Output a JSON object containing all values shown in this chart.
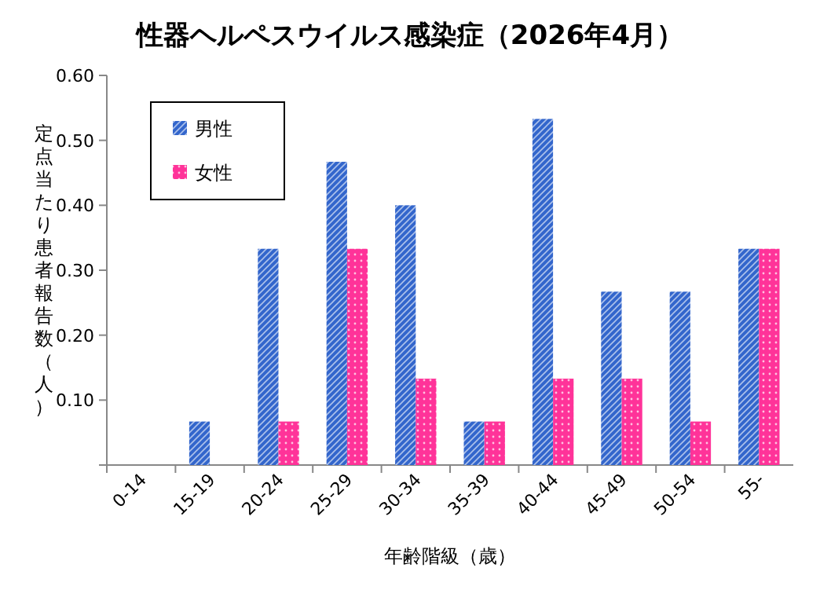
{
  "chart_data": {
    "type": "bar",
    "title": "性器ヘルペスウイルス感染症（2026年4月）",
    "xlabel": "年齢階級（歳）",
    "ylabel": "定点当たり患者報告数（人）",
    "categories": [
      "0-14",
      "15-19",
      "20-24",
      "25-29",
      "30-34",
      "35-39",
      "40-44",
      "45-49",
      "50-54",
      "55-"
    ],
    "series": [
      {
        "name": "男性",
        "color": "#3366cc",
        "values": [
          0,
          0.067,
          0.333,
          0.467,
          0.4,
          0.067,
          0.533,
          0.267,
          0.267,
          0.333
        ]
      },
      {
        "name": "女性",
        "color": "#ff3399",
        "values": [
          0,
          0,
          0.067,
          0.333,
          0.133,
          0.067,
          0.133,
          0.133,
          0.067,
          0.333
        ]
      }
    ],
    "ylim": [
      0,
      0.6
    ],
    "yticks": [
      {
        "value": 0,
        "label": null
      },
      {
        "value": 0.1,
        "label": "0.10"
      },
      {
        "value": 0.2,
        "label": "0.20"
      },
      {
        "value": 0.3,
        "label": "0.30"
      },
      {
        "value": 0.4,
        "label": "0.40"
      },
      {
        "value": 0.5,
        "label": "0.50"
      },
      {
        "value": 0.6,
        "label": "0.60"
      }
    ],
    "legend": "top left",
    "grid": false
  }
}
